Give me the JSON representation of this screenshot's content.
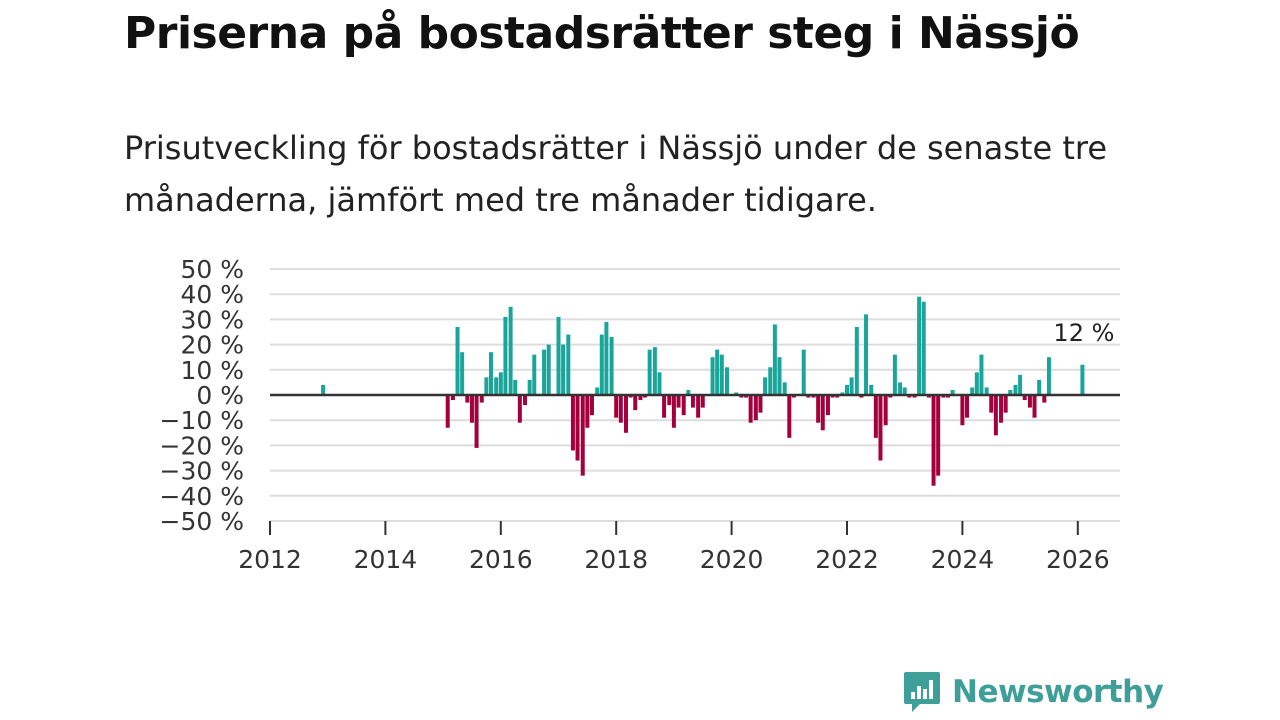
{
  "title": "Priserna på bostadsrätter steg i Nässjö",
  "subtitle": "Prisutveckling för bostadsrätter i Nässjö under de senaste tre månaderna, jämfört med tre månader tidigare.",
  "brand": {
    "name": "Newsworthy",
    "color": "#3e9f98"
  },
  "colors": {
    "positive": "#1aa59a",
    "negative": "#a3003c",
    "grid": "#dddddd",
    "zero": "#333333"
  },
  "chart_data": {
    "type": "bar",
    "title": "Priserna på bostadsrätter steg i Nässjö",
    "xlabel": "",
    "ylabel": "",
    "ylim": [
      -50,
      50
    ],
    "xlim": [
      2012,
      2026.75
    ],
    "y_ticks": [
      50,
      40,
      30,
      20,
      10,
      0,
      -10,
      -20,
      -30,
      -40,
      -50
    ],
    "y_tick_labels": [
      "50 %",
      "40 %",
      "30 %",
      "20 %",
      "10 %",
      "0 %",
      "−10 %",
      "−20 %",
      "−30 %",
      "−40 %",
      "−50 %"
    ],
    "x_ticks": [
      2012,
      2014,
      2016,
      2018,
      2020,
      2022,
      2024,
      2026
    ],
    "x_tick_labels": [
      "2012",
      "2014",
      "2016",
      "2018",
      "2020",
      "2022",
      "2024",
      "2026"
    ],
    "annotation": {
      "text": "12 %",
      "x": 2026.08,
      "y": 12
    },
    "series": [
      {
        "name": "Prisutveckling",
        "points": [
          {
            "x": 2012.92,
            "y": 4
          },
          {
            "x": 2015.08,
            "y": -13
          },
          {
            "x": 2015.17,
            "y": -2
          },
          {
            "x": 2015.25,
            "y": 27
          },
          {
            "x": 2015.33,
            "y": 17
          },
          {
            "x": 2015.42,
            "y": -3
          },
          {
            "x": 2015.5,
            "y": -11
          },
          {
            "x": 2015.58,
            "y": -21
          },
          {
            "x": 2015.67,
            "y": -3
          },
          {
            "x": 2015.75,
            "y": 7
          },
          {
            "x": 2015.83,
            "y": 17
          },
          {
            "x": 2015.92,
            "y": 7
          },
          {
            "x": 2016.0,
            "y": 9
          },
          {
            "x": 2016.08,
            "y": 31
          },
          {
            "x": 2016.17,
            "y": 35
          },
          {
            "x": 2016.25,
            "y": 6
          },
          {
            "x": 2016.33,
            "y": -11
          },
          {
            "x": 2016.42,
            "y": -4
          },
          {
            "x": 2016.5,
            "y": 6
          },
          {
            "x": 2016.58,
            "y": 16
          },
          {
            "x": 2016.75,
            "y": 18
          },
          {
            "x": 2016.83,
            "y": 20
          },
          {
            "x": 2017.0,
            "y": 31
          },
          {
            "x": 2017.08,
            "y": 20
          },
          {
            "x": 2017.17,
            "y": 24
          },
          {
            "x": 2017.25,
            "y": -22
          },
          {
            "x": 2017.33,
            "y": -26
          },
          {
            "x": 2017.42,
            "y": -32
          },
          {
            "x": 2017.5,
            "y": -13
          },
          {
            "x": 2017.58,
            "y": -8
          },
          {
            "x": 2017.67,
            "y": 3
          },
          {
            "x": 2017.75,
            "y": 24
          },
          {
            "x": 2017.83,
            "y": 29
          },
          {
            "x": 2017.92,
            "y": 23
          },
          {
            "x": 2018.0,
            "y": -9
          },
          {
            "x": 2018.08,
            "y": -11
          },
          {
            "x": 2018.17,
            "y": -15
          },
          {
            "x": 2018.25,
            "y": -1
          },
          {
            "x": 2018.33,
            "y": -6
          },
          {
            "x": 2018.42,
            "y": -2
          },
          {
            "x": 2018.5,
            "y": -1
          },
          {
            "x": 2018.58,
            "y": 18
          },
          {
            "x": 2018.67,
            "y": 19
          },
          {
            "x": 2018.75,
            "y": 9
          },
          {
            "x": 2018.83,
            "y": -9
          },
          {
            "x": 2018.92,
            "y": -4
          },
          {
            "x": 2019.0,
            "y": -13
          },
          {
            "x": 2019.08,
            "y": -5
          },
          {
            "x": 2019.17,
            "y": -8
          },
          {
            "x": 2019.25,
            "y": 2
          },
          {
            "x": 2019.33,
            "y": -5
          },
          {
            "x": 2019.42,
            "y": -9
          },
          {
            "x": 2019.5,
            "y": -5
          },
          {
            "x": 2019.67,
            "y": 15
          },
          {
            "x": 2019.75,
            "y": 18
          },
          {
            "x": 2019.83,
            "y": 16
          },
          {
            "x": 2019.92,
            "y": 11
          },
          {
            "x": 2020.08,
            "y": 1
          },
          {
            "x": 2020.17,
            "y": -1
          },
          {
            "x": 2020.25,
            "y": -1
          },
          {
            "x": 2020.33,
            "y": -11
          },
          {
            "x": 2020.42,
            "y": -10
          },
          {
            "x": 2020.5,
            "y": -7
          },
          {
            "x": 2020.58,
            "y": 7
          },
          {
            "x": 2020.67,
            "y": 11
          },
          {
            "x": 2020.75,
            "y": 28
          },
          {
            "x": 2020.83,
            "y": 15
          },
          {
            "x": 2020.92,
            "y": 5
          },
          {
            "x": 2021.0,
            "y": -17
          },
          {
            "x": 2021.08,
            "y": -1
          },
          {
            "x": 2021.25,
            "y": 18
          },
          {
            "x": 2021.33,
            "y": -1
          },
          {
            "x": 2021.42,
            "y": -1
          },
          {
            "x": 2021.5,
            "y": -11
          },
          {
            "x": 2021.58,
            "y": -14
          },
          {
            "x": 2021.67,
            "y": -8
          },
          {
            "x": 2021.75,
            "y": -1
          },
          {
            "x": 2021.83,
            "y": -1
          },
          {
            "x": 2021.92,
            "y": 1
          },
          {
            "x": 2022.0,
            "y": 4
          },
          {
            "x": 2022.08,
            "y": 7
          },
          {
            "x": 2022.17,
            "y": 27
          },
          {
            "x": 2022.25,
            "y": -1
          },
          {
            "x": 2022.33,
            "y": 32
          },
          {
            "x": 2022.42,
            "y": 4
          },
          {
            "x": 2022.5,
            "y": -17
          },
          {
            "x": 2022.58,
            "y": -26
          },
          {
            "x": 2022.67,
            "y": -12
          },
          {
            "x": 2022.75,
            "y": -1
          },
          {
            "x": 2022.83,
            "y": 16
          },
          {
            "x": 2022.92,
            "y": 5
          },
          {
            "x": 2023.0,
            "y": 3
          },
          {
            "x": 2023.08,
            "y": -1
          },
          {
            "x": 2023.17,
            "y": -1
          },
          {
            "x": 2023.25,
            "y": 39
          },
          {
            "x": 2023.33,
            "y": 37
          },
          {
            "x": 2023.42,
            "y": -1
          },
          {
            "x": 2023.5,
            "y": -36
          },
          {
            "x": 2023.58,
            "y": -32
          },
          {
            "x": 2023.67,
            "y": -1
          },
          {
            "x": 2023.75,
            "y": -1
          },
          {
            "x": 2023.83,
            "y": 2
          },
          {
            "x": 2024.0,
            "y": -12
          },
          {
            "x": 2024.08,
            "y": -9
          },
          {
            "x": 2024.17,
            "y": 3
          },
          {
            "x": 2024.25,
            "y": 9
          },
          {
            "x": 2024.33,
            "y": 16
          },
          {
            "x": 2024.42,
            "y": 3
          },
          {
            "x": 2024.5,
            "y": -7
          },
          {
            "x": 2024.58,
            "y": -16
          },
          {
            "x": 2024.67,
            "y": -11
          },
          {
            "x": 2024.75,
            "y": -7
          },
          {
            "x": 2024.83,
            "y": 2
          },
          {
            "x": 2024.92,
            "y": 4
          },
          {
            "x": 2025.0,
            "y": 8
          },
          {
            "x": 2025.08,
            "y": -2
          },
          {
            "x": 2025.17,
            "y": -5
          },
          {
            "x": 2025.25,
            "y": -9
          },
          {
            "x": 2025.33,
            "y": 6
          },
          {
            "x": 2025.42,
            "y": -3
          },
          {
            "x": 2025.5,
            "y": 15
          },
          {
            "x": 2026.08,
            "y": 12
          }
        ]
      }
    ]
  }
}
